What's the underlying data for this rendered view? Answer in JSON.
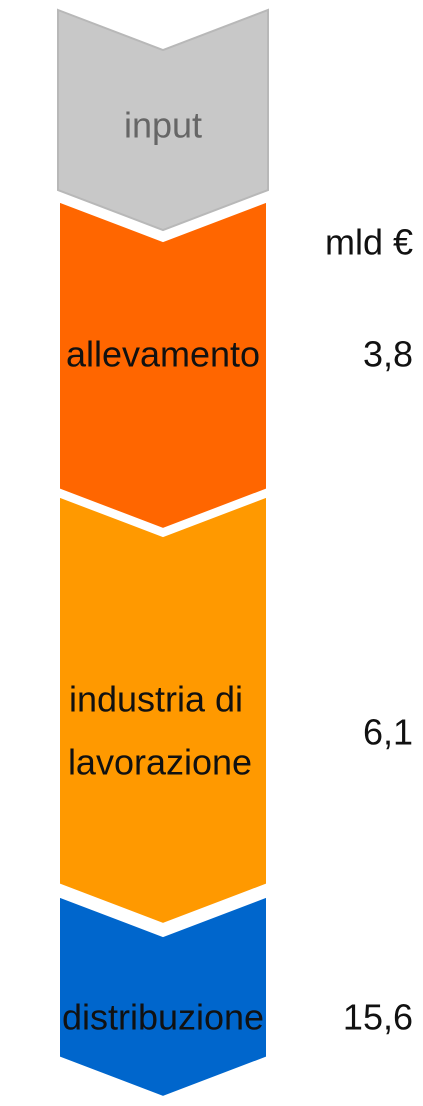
{
  "unit": "mld €",
  "stages": [
    {
      "label": [
        "input"
      ]
    },
    {
      "label": [
        "allevamento"
      ],
      "value": "3,8"
    },
    {
      "label": [
        "industria di",
        "lavorazione"
      ],
      "value": "6,1"
    },
    {
      "label": [
        "distribuzione"
      ],
      "value": "15,6"
    }
  ]
}
